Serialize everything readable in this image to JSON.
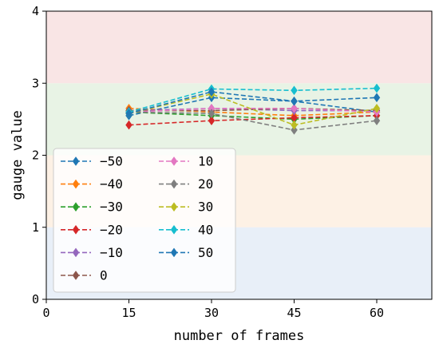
{
  "chart_data": {
    "type": "line",
    "xlabel": "number of frames",
    "ylabel": "gauge value",
    "xlim": [
      0,
      70
    ],
    "ylim": [
      0,
      4
    ],
    "x_ticks": [
      0,
      15,
      30,
      45,
      60
    ],
    "y_ticks": [
      0,
      1,
      2,
      3,
      4
    ],
    "grid": false,
    "legend_position": "lower-left",
    "legend_columns": 2,
    "background_bands": [
      {
        "from": 0,
        "to": 1,
        "color": "#e8eff8"
      },
      {
        "from": 1,
        "to": 2,
        "color": "#fdf1e5"
      },
      {
        "from": 2,
        "to": 3,
        "color": "#e8f3e5"
      },
      {
        "from": 3,
        "to": 4,
        "color": "#f9e5e5"
      }
    ],
    "x": [
      15,
      30,
      45,
      60
    ],
    "series": [
      {
        "name": "−50",
        "color": "#1f77b4",
        "values": [
          2.55,
          2.8,
          2.75,
          2.6
        ]
      },
      {
        "name": "−40",
        "color": "#ff7f0e",
        "values": [
          2.65,
          2.6,
          2.55,
          2.6
        ]
      },
      {
        "name": "−30",
        "color": "#2ca02c",
        "values": [
          2.6,
          2.55,
          2.5,
          2.55
        ]
      },
      {
        "name": "−20",
        "color": "#d62728",
        "values": [
          2.42,
          2.48,
          2.52,
          2.55
        ]
      },
      {
        "name": "−10",
        "color": "#9467bd",
        "values": [
          2.62,
          2.65,
          2.62,
          2.62
        ]
      },
      {
        "name": "0",
        "color": "#8c564b",
        "values": [
          2.62,
          2.62,
          2.65,
          2.62
        ]
      },
      {
        "name": "10",
        "color": "#e377c2",
        "values": [
          2.6,
          2.65,
          2.65,
          2.6
        ]
      },
      {
        "name": "20",
        "color": "#7f7f7f",
        "values": [
          2.6,
          2.58,
          2.35,
          2.48
        ]
      },
      {
        "name": "30",
        "color": "#bcbd22",
        "values": [
          2.58,
          2.85,
          2.42,
          2.65
        ]
      },
      {
        "name": "40",
        "color": "#17becf",
        "values": [
          2.6,
          2.92,
          2.9,
          2.93
        ]
      },
      {
        "name": "50",
        "color": "#1f77b4",
        "values": [
          2.58,
          2.88,
          2.75,
          2.8
        ]
      }
    ]
  }
}
